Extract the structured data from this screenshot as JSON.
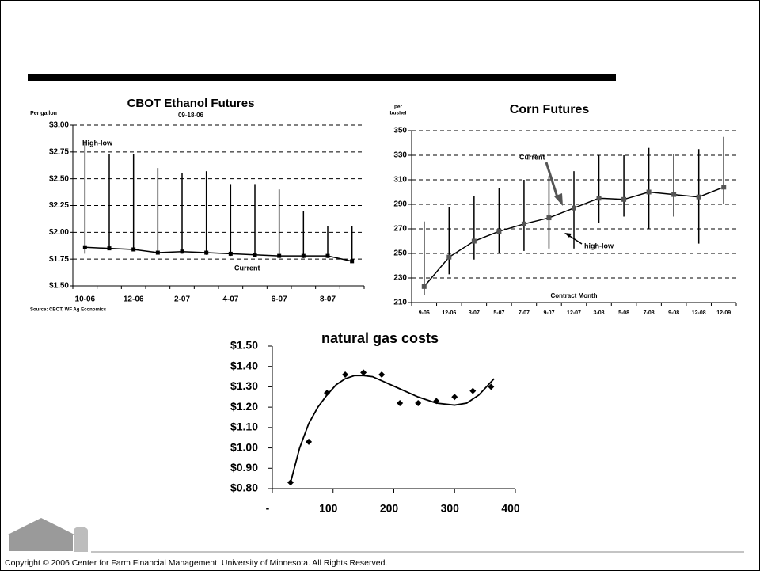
{
  "chart_data": [
    {
      "type": "line",
      "title": "CBOT Ethanol Futures",
      "subtitle": "09-18-06",
      "ylabel": "Per gallon",
      "categories": [
        "10-06",
        null,
        "12-06",
        null,
        "2-07",
        null,
        "4-07",
        null,
        "6-07",
        null,
        "8-07",
        null
      ],
      "current": [
        1.86,
        1.85,
        1.84,
        1.81,
        1.82,
        1.81,
        1.8,
        1.79,
        1.78,
        1.78,
        1.78,
        1.73
      ],
      "high": [
        2.85,
        2.73,
        2.73,
        2.6,
        2.55,
        2.57,
        2.45,
        2.45,
        2.4,
        2.2,
        2.06,
        2.06
      ],
      "low": [
        1.8,
        1.84,
        1.83,
        1.8,
        1.8,
        1.79,
        1.78,
        1.77,
        1.76,
        1.76,
        1.76,
        1.72
      ],
      "color": "#000000",
      "ylim": [
        1.5,
        3.0
      ],
      "yticks": [
        {
          "value": 1.5,
          "label": "$1.50"
        },
        {
          "value": 1.75,
          "label": "$1.75"
        },
        {
          "value": 2.0,
          "label": "$2.00"
        },
        {
          "value": 2.25,
          "label": "$2.25"
        },
        {
          "value": 2.5,
          "label": "$2.50"
        },
        {
          "value": 2.75,
          "label": "$2.75"
        },
        {
          "value": 3.0,
          "label": "$3.00"
        }
      ],
      "grid": true,
      "annotations": [
        "High-low",
        "Current"
      ],
      "source": "Source: CBOT, WF Ag Economics"
    },
    {
      "type": "line",
      "title": "Corn Futures",
      "ylabel_lines": [
        "per",
        "bushel"
      ],
      "xlabel": "Contract Month",
      "categories": [
        "9-06",
        "12-06",
        "3-07",
        "5-07",
        "7-07",
        "9-07",
        "12-07",
        "3-08",
        "5-08",
        "7-08",
        "9-08",
        "12-08",
        "12-09"
      ],
      "current": [
        223,
        247,
        260,
        268,
        274,
        279,
        287,
        295,
        294,
        300,
        298,
        296,
        304
      ],
      "high": [
        276,
        288,
        297,
        303,
        310,
        313,
        317,
        330,
        330,
        336,
        331,
        335,
        345
      ],
      "low": [
        216,
        233,
        245,
        250,
        252,
        254,
        254,
        275,
        280,
        270,
        280,
        258,
        290
      ],
      "color": "#555555",
      "ylim": [
        210,
        350
      ],
      "yticks": [
        210,
        230,
        250,
        270,
        290,
        310,
        330,
        350
      ],
      "grid": true,
      "annotations": [
        "Current",
        "high-low"
      ]
    },
    {
      "type": "scatter",
      "title": "natural gas costs",
      "x": [
        30,
        60,
        90,
        120,
        150,
        180,
        210,
        240,
        270,
        300,
        330,
        360
      ],
      "values": [
        0.83,
        1.03,
        1.27,
        1.36,
        1.37,
        1.36,
        1.22,
        1.22,
        1.23,
        1.25,
        1.28,
        1.3
      ],
      "trend": {
        "x": [
          30,
          45,
          60,
          75,
          90,
          105,
          120,
          135,
          150,
          165,
          180,
          210,
          240,
          270,
          300,
          320,
          340,
          365
        ],
        "values": [
          0.83,
          1.0,
          1.12,
          1.2,
          1.26,
          1.31,
          1.34,
          1.355,
          1.355,
          1.35,
          1.33,
          1.29,
          1.25,
          1.22,
          1.21,
          1.22,
          1.26,
          1.34
        ]
      },
      "color": "#000000",
      "xlim": [
        0,
        400
      ],
      "xticks": [
        {
          "value": 0,
          "label": "-"
        },
        100,
        200,
        300,
        400
      ],
      "ylim": [
        0.8,
        1.5
      ],
      "yticks": [
        {
          "value": 0.8,
          "label": "$0.80"
        },
        {
          "value": 0.9,
          "label": "$0.90"
        },
        {
          "value": 1.0,
          "label": "$1.00"
        },
        {
          "value": 1.1,
          "label": "$1.10"
        },
        {
          "value": 1.2,
          "label": "$1.20"
        },
        {
          "value": 1.3,
          "label": "$1.30"
        },
        {
          "value": 1.4,
          "label": "$1.40"
        },
        {
          "value": 1.5,
          "label": "$1.50"
        }
      ]
    }
  ],
  "footer": {
    "copyright": "Copyright © 2006 Center for Farm Financial Management, University of Minnesota.  All Rights Reserved."
  }
}
